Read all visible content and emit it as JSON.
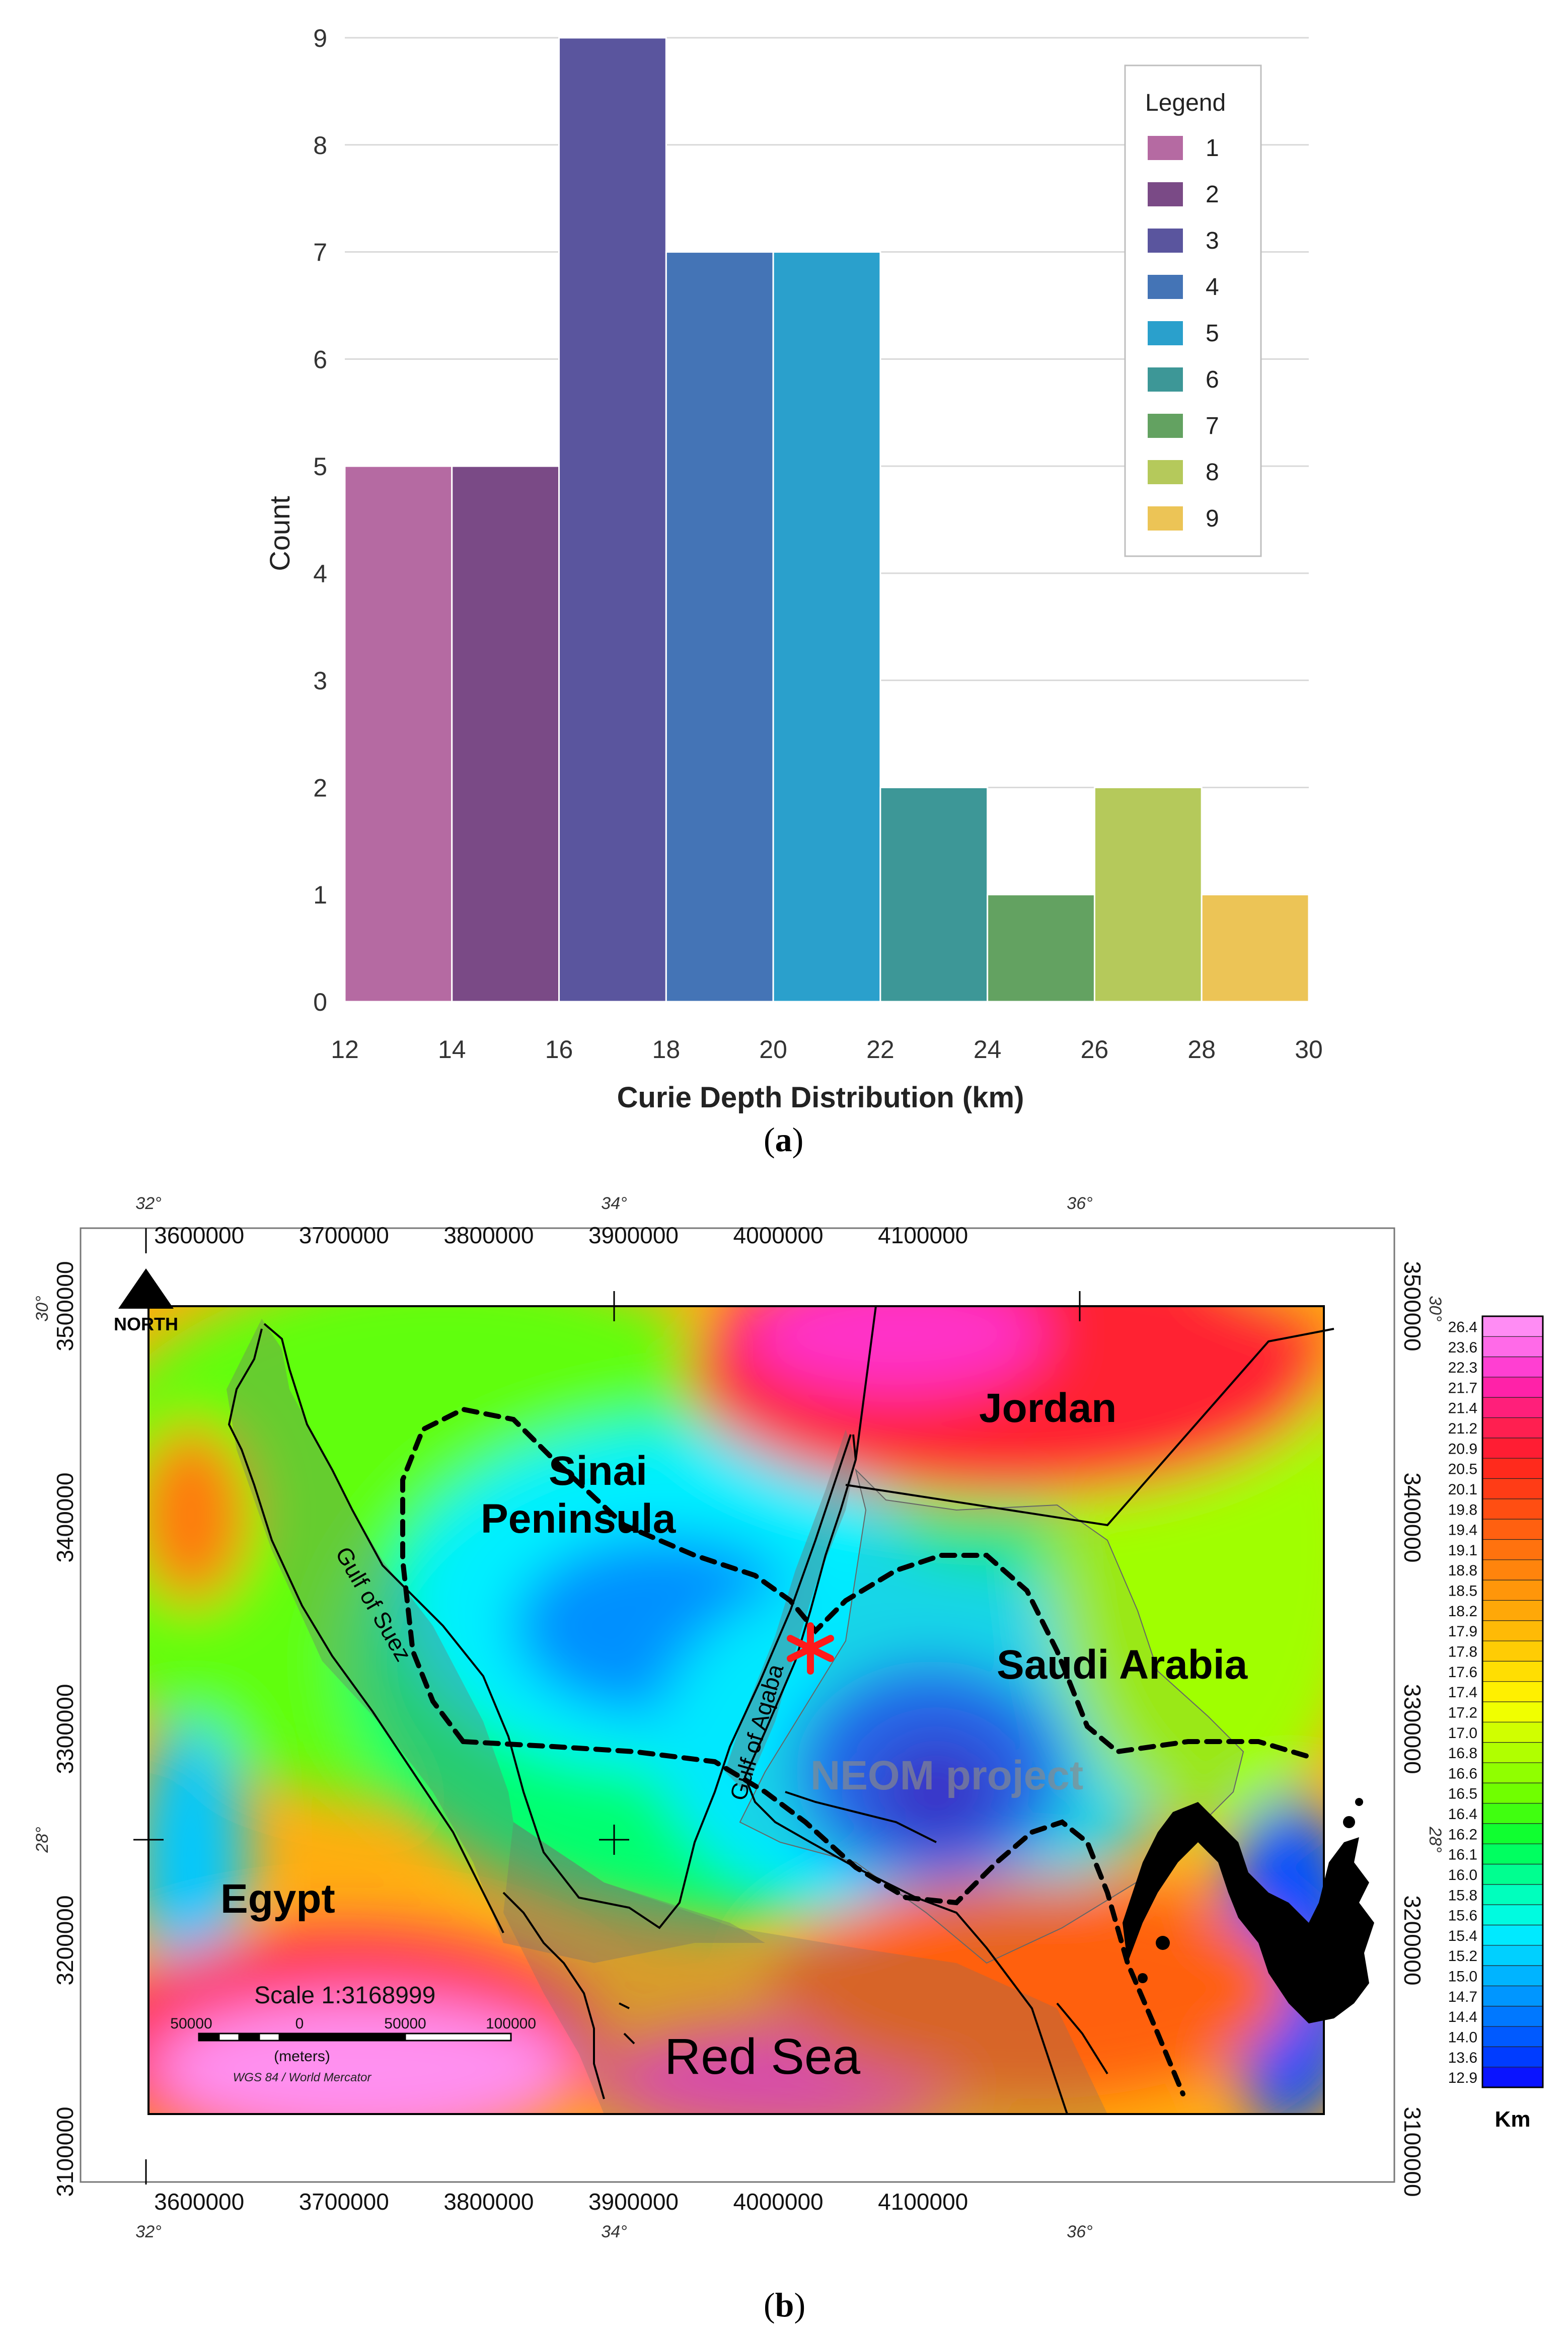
{
  "panel_a": {
    "caption_open": "(",
    "caption_letter": "a",
    "caption_close": ")"
  },
  "panel_b": {
    "caption_open": "(",
    "caption_letter": "b",
    "caption_close": ")",
    "north_label": "NORTH",
    "x_labels": [
      "3600000",
      "3700000",
      "3800000",
      "3900000",
      "4000000",
      "4100000"
    ],
    "y_labels": [
      "3500000",
      "3400000",
      "3300000",
      "3200000",
      "3100000"
    ],
    "lon_labels": [
      "32°",
      "34°",
      "36°"
    ],
    "lat_labels": [
      "30°",
      "28°"
    ],
    "places": {
      "jordan": "Jordan",
      "sinai_1": "Sinai",
      "sinai_2": "Peninsula",
      "saudi": "Saudi Arabia",
      "egypt": "Egypt",
      "red_sea": "Red Sea",
      "gulf_suez": "Gulf of Suez",
      "gulf_aqaba": "Gulf of Aqaba",
      "neom": "NEOM project"
    },
    "scale": {
      "title": "Scale 1:3168999",
      "ticks": [
        "50000",
        "0",
        "50000",
        "100000"
      ],
      "units": "(meters)",
      "projection": "WGS 84 / World Mercator"
    },
    "colorbar": {
      "unit": "Km",
      "values": [
        "26.4",
        "23.6",
        "22.3",
        "21.7",
        "21.4",
        "21.2",
        "20.9",
        "20.5",
        "20.1",
        "19.8",
        "19.4",
        "19.1",
        "18.8",
        "18.5",
        "18.2",
        "17.9",
        "17.8",
        "17.6",
        "17.4",
        "17.2",
        "17.0",
        "16.8",
        "16.6",
        "16.5",
        "16.4",
        "16.2",
        "16.1",
        "16.0",
        "15.8",
        "15.6",
        "15.4",
        "15.2",
        "15.0",
        "14.7",
        "14.4",
        "14.0",
        "13.6",
        "12.9"
      ],
      "colors": [
        "#ff8cf4",
        "#ff6ae8",
        "#ff3fd2",
        "#ff22a8",
        "#ff1f7a",
        "#ff1f50",
        "#ff1d33",
        "#ff2a1c",
        "#ff3c16",
        "#ff4e12",
        "#ff6010",
        "#ff720e",
        "#ff840c",
        "#ff960a",
        "#ffa808",
        "#ffba06",
        "#ffcc04",
        "#ffde02",
        "#fff000",
        "#f0ff00",
        "#d0ff00",
        "#b0ff00",
        "#90ff00",
        "#70ff00",
        "#40ff10",
        "#10ff30",
        "#00ff60",
        "#00ff90",
        "#00ffbd",
        "#00fbe0",
        "#00eaff",
        "#00d0ff",
        "#00b4ff",
        "#0096ff",
        "#0078ff",
        "#005aff",
        "#003cff",
        "#0a14ff"
      ]
    }
  },
  "chart_data": {
    "type": "bar",
    "xlabel": "Curie Depth Distribution (km)",
    "ylabel": "Count",
    "xlim": [
      12,
      30
    ],
    "ylim": [
      0,
      9
    ],
    "xticks": [
      "12",
      "14",
      "16",
      "18",
      "20",
      "22",
      "24",
      "26",
      "28",
      "30"
    ],
    "yticks": [
      "0",
      "1",
      "2",
      "3",
      "4",
      "5",
      "6",
      "7",
      "8",
      "9"
    ],
    "bins": [
      [
        12,
        14
      ],
      [
        14,
        16
      ],
      [
        16,
        18
      ],
      [
        18,
        20
      ],
      [
        20,
        22
      ],
      [
        22,
        24
      ],
      [
        24,
        26
      ],
      [
        26,
        28
      ],
      [
        28,
        30
      ]
    ],
    "values": [
      5,
      5,
      9,
      7,
      7,
      2,
      1,
      2,
      1
    ],
    "colors": [
      "#b56aa2",
      "#7a4a86",
      "#5a559e",
      "#4474b6",
      "#2aa0cc",
      "#3d9797",
      "#63a261",
      "#b5c95b",
      "#ecc456"
    ],
    "grid": true,
    "legend": {
      "title": "Legend",
      "position": "top-right",
      "entries": [
        "1",
        "2",
        "3",
        "4",
        "5",
        "6",
        "7",
        "8",
        "9"
      ]
    }
  }
}
